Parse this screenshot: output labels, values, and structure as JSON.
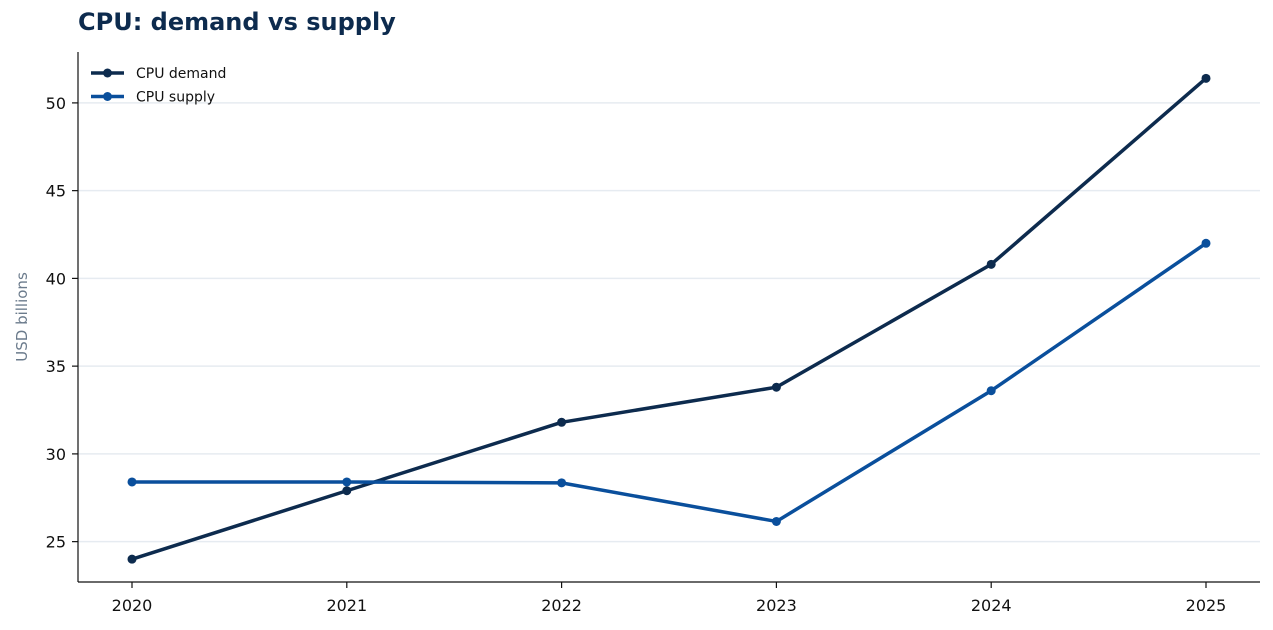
{
  "chart_data": {
    "type": "line",
    "title": "CPU: demand vs supply",
    "xlabel": "",
    "ylabel": "USD billions",
    "x": [
      "2020",
      "2021",
      "2022",
      "2023",
      "2024",
      "2025"
    ],
    "yticks": [
      25,
      30,
      35,
      40,
      45,
      50
    ],
    "ylim": [
      22.7,
      52.9
    ],
    "grid": "horizontal",
    "legend_position": "top-left",
    "series": [
      {
        "name": "CPU demand",
        "color": "#0d2b4e",
        "values": [
          24.0,
          27.9,
          31.8,
          33.8,
          40.8,
          51.4
        ]
      },
      {
        "name": "CPU supply",
        "color": "#0a4f9c",
        "values": [
          28.4,
          28.4,
          28.35,
          26.15,
          33.6,
          42.0
        ]
      }
    ]
  }
}
